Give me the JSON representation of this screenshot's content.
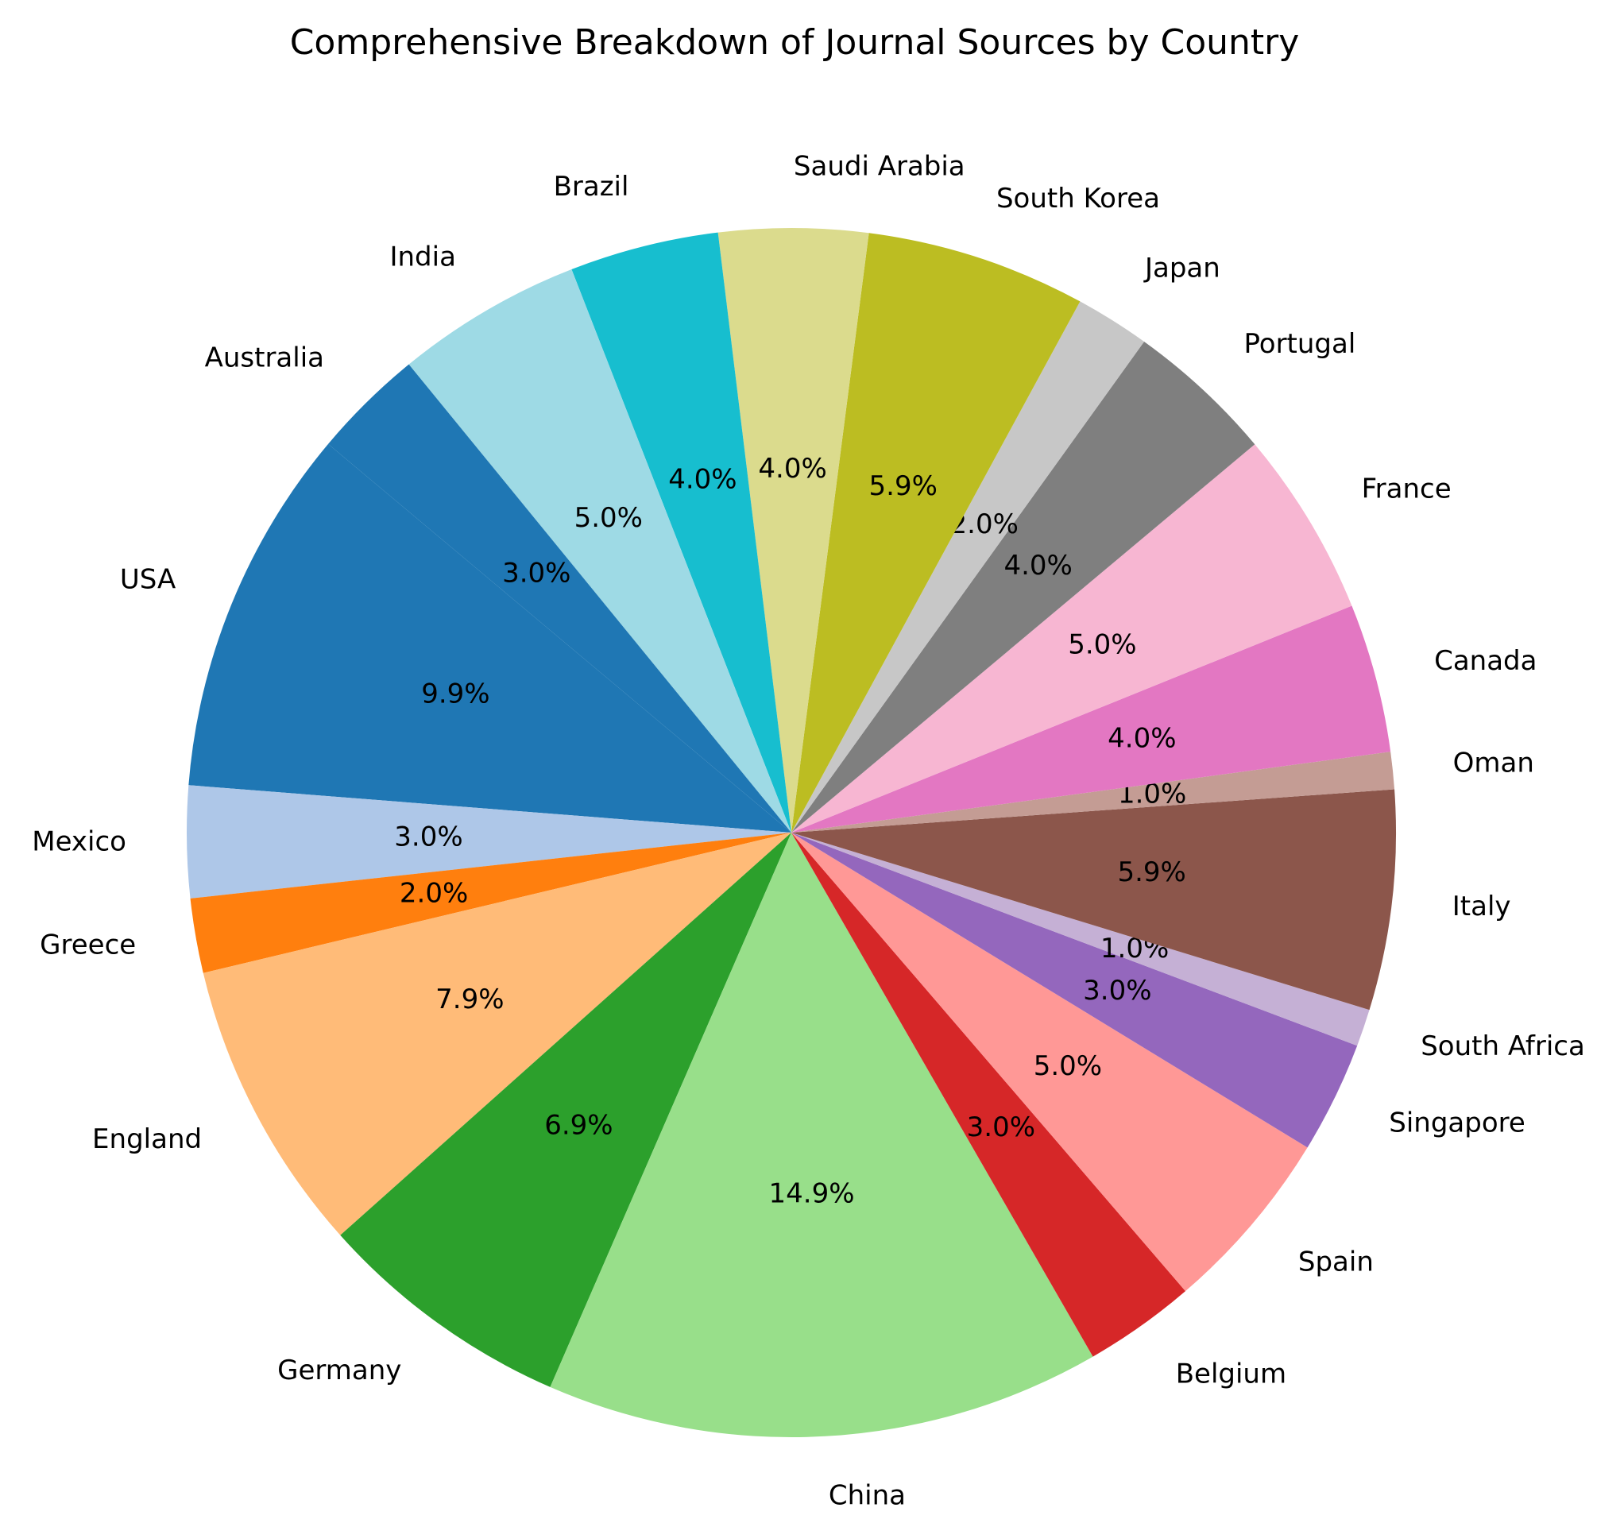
{
  "chart_data": {
    "type": "pie",
    "title": "Comprehensive Breakdown of Journal Sources by Country",
    "categories": [
      "USA",
      "Mexico",
      "Greece",
      "England",
      "Germany",
      "China",
      "Belgium",
      "Spain",
      "Singapore",
      "South Africa",
      "Italy",
      "Oman",
      "Canada",
      "France",
      "Portugal",
      "Japan",
      "South Korea",
      "Saudi Arabia",
      "Brazil",
      "India",
      "Australia"
    ],
    "values": [
      9.9,
      3.0,
      2.0,
      7.9,
      6.9,
      14.9,
      3.0,
      5.0,
      3.0,
      1.0,
      5.9,
      1.0,
      4.0,
      5.0,
      4.0,
      2.0,
      5.9,
      4.0,
      4.0,
      5.0,
      3.0
    ],
    "value_labels": [
      "9.9%",
      "3.0%",
      "2.0%",
      "7.9%",
      "6.9%",
      "14.9%",
      "3.0%",
      "5.0%",
      "3.0%",
      "1.0%",
      "5.9%",
      "1.0%",
      "4.0%",
      "5.0%",
      "4.0%",
      "2.0%",
      "5.9%",
      "4.0%",
      "4.0%",
      "5.0%",
      "3.0%"
    ],
    "colors": [
      "#1f77b4",
      "#aec7e8",
      "#ff7f0e",
      "#ffbb78",
      "#2ca02c",
      "#98df8a",
      "#d62728",
      "#ff9896",
      "#9467bd",
      "#c5b0d5",
      "#8c564b",
      "#c49c94",
      "#e377c2",
      "#f7b6d2",
      "#7f7f7f",
      "#c7c7c7",
      "#bcbd22",
      "#dbdb8d",
      "#17becf",
      "#9edae5",
      "#1f77b4"
    ]
  }
}
